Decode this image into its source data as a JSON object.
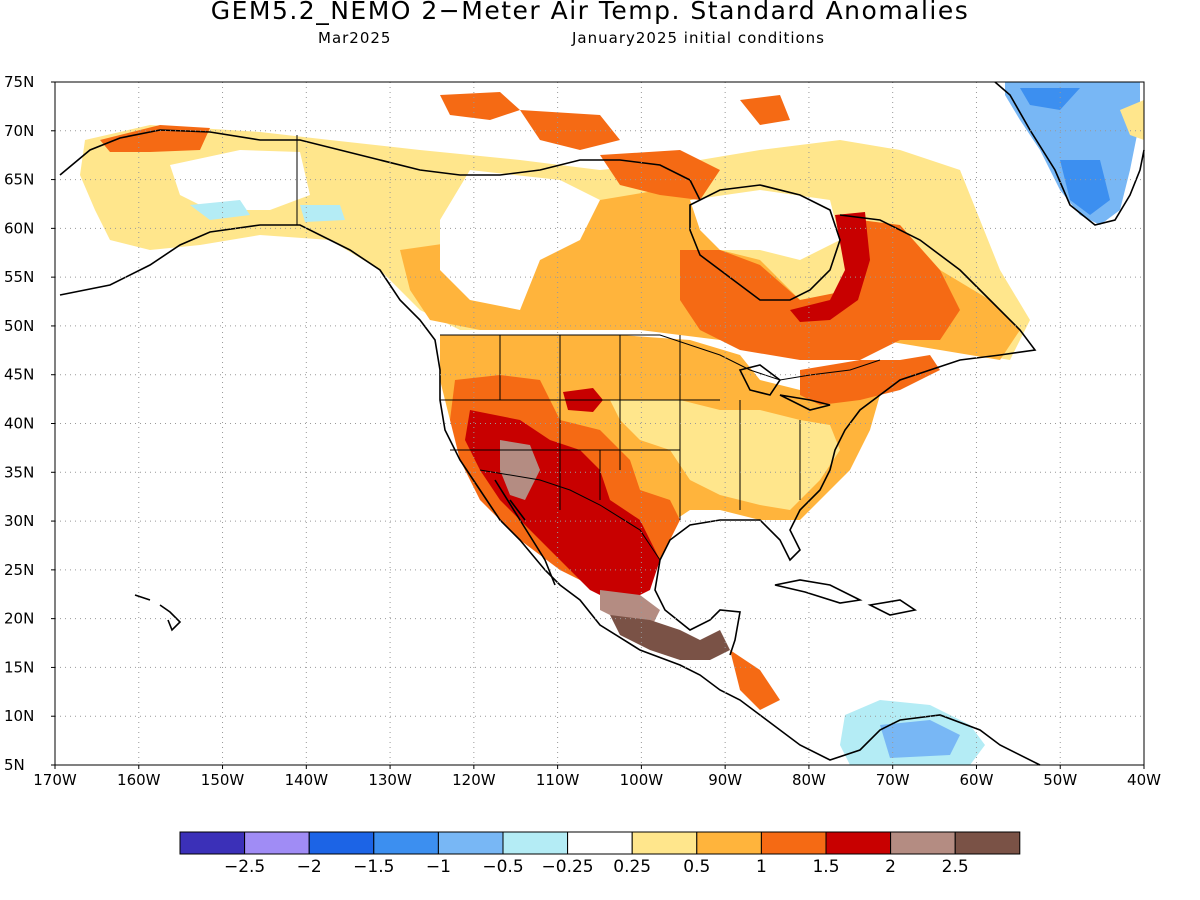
{
  "title": "GEM5.2_NEMO 2−Meter Air Temp. Standard Anomalies",
  "subtitle_left": "Mar2025",
  "subtitle_right": "January2025 initial conditions",
  "map": {
    "lon_range": [
      -170,
      -40
    ],
    "lat_range": [
      5,
      75
    ],
    "lat_labels": [
      "5N",
      "10N",
      "15N",
      "20N",
      "25N",
      "30N",
      "35N",
      "40N",
      "45N",
      "50N",
      "55N",
      "60N",
      "65N",
      "70N",
      "75N"
    ],
    "lon_labels": [
      "170W",
      "160W",
      "150W",
      "140W",
      "130W",
      "120W",
      "110W",
      "100W",
      "90W",
      "80W",
      "70W",
      "60W",
      "50W",
      "40W"
    ],
    "grid": "dotted"
  },
  "colorbar": {
    "colors": [
      "#3b30b8",
      "#a08cf5",
      "#1c64e6",
      "#3c8ff0",
      "#78b7f5",
      "#b4ecf5",
      "#ffffff",
      "#ffe68c",
      "#ffb43c",
      "#f56a14",
      "#c80000",
      "#b48c82",
      "#7a5246"
    ],
    "labels": [
      "−2.5",
      "−2",
      "−1.5",
      "−1",
      "−0.5",
      "−0.25",
      "0.25",
      "0.5",
      "1",
      "1.5",
      "2",
      "2.5"
    ]
  },
  "anomaly_fields": [
    {
      "level": "0.25 to 0.5",
      "color": "#ffe68c"
    },
    {
      "level": "0.5 to 1",
      "color": "#ffb43c"
    },
    {
      "level": "1 to 1.5",
      "color": "#f56a14"
    },
    {
      "level": "1.5 to 2",
      "color": "#c80000"
    },
    {
      "level": "2 to 2.5",
      "color": "#b48c82"
    },
    {
      "level": "above 2.5",
      "color": "#7a5246"
    },
    {
      "level": "-0.5 to -0.25",
      "color": "#b4ecf5"
    },
    {
      "level": "-1 to -0.5",
      "color": "#78b7f5"
    },
    {
      "level": "-1.5 to -1",
      "color": "#3c8ff0"
    }
  ]
}
